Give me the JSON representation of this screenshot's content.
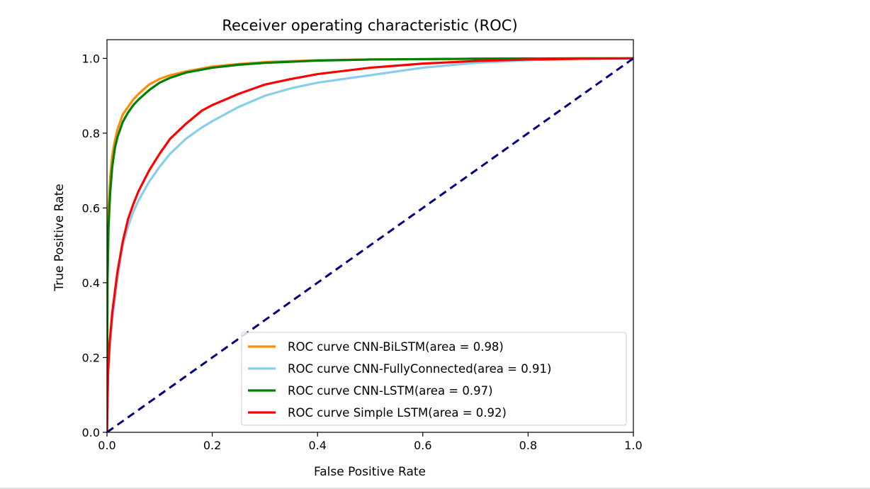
{
  "chart_data": {
    "type": "line",
    "title": "Receiver operating characteristic (ROC)",
    "xlabel": "False Positive Rate",
    "ylabel": "True Positive Rate",
    "xlim": [
      0.0,
      1.0
    ],
    "ylim": [
      0.0,
      1.05
    ],
    "xticks": [
      0.0,
      0.2,
      0.4,
      0.6,
      0.8,
      1.0
    ],
    "xtick_labels": [
      "0.0",
      "0.2",
      "0.4",
      "0.6",
      "0.8",
      "1.0"
    ],
    "yticks": [
      0.0,
      0.2,
      0.4,
      0.6,
      0.8,
      1.0
    ],
    "ytick_labels": [
      "0.0",
      "0.2",
      "0.4",
      "0.6",
      "0.8",
      "1.0"
    ],
    "grid": false,
    "legend_position": "lower-right",
    "series": [
      {
        "name": "ROC curve CNN-BiLSTM(area = 0.98)",
        "color": "#ff8c00",
        "dash": "solid",
        "x": [
          0.0,
          0.001,
          0.003,
          0.006,
          0.01,
          0.015,
          0.02,
          0.03,
          0.04,
          0.05,
          0.06,
          0.08,
          0.1,
          0.12,
          0.15,
          0.2,
          0.25,
          0.3,
          0.4,
          0.5,
          0.6,
          0.7,
          0.8,
          0.9,
          1.0
        ],
        "y": [
          0.0,
          0.45,
          0.6,
          0.68,
          0.74,
          0.78,
          0.81,
          0.85,
          0.87,
          0.89,
          0.905,
          0.93,
          0.945,
          0.955,
          0.965,
          0.978,
          0.985,
          0.99,
          0.995,
          0.997,
          0.998,
          0.999,
          0.9995,
          1.0,
          1.0
        ]
      },
      {
        "name": "ROC curve CNN-FullyConnected(area = 0.91)",
        "color": "#87ceeb",
        "dash": "solid",
        "x": [
          0.0,
          0.002,
          0.005,
          0.01,
          0.02,
          0.03,
          0.04,
          0.05,
          0.06,
          0.08,
          0.1,
          0.12,
          0.15,
          0.18,
          0.2,
          0.25,
          0.3,
          0.35,
          0.4,
          0.5,
          0.6,
          0.7,
          0.8,
          0.9,
          1.0
        ],
        "y": [
          0.0,
          0.15,
          0.22,
          0.3,
          0.41,
          0.5,
          0.55,
          0.59,
          0.62,
          0.67,
          0.71,
          0.745,
          0.785,
          0.815,
          0.832,
          0.87,
          0.9,
          0.92,
          0.935,
          0.955,
          0.975,
          0.988,
          0.995,
          0.999,
          1.0
        ]
      },
      {
        "name": "ROC curve CNN-LSTM(area = 0.97)",
        "color": "#008000",
        "dash": "solid",
        "x": [
          0.0,
          0.001,
          0.003,
          0.006,
          0.01,
          0.015,
          0.02,
          0.03,
          0.04,
          0.05,
          0.06,
          0.08,
          0.1,
          0.12,
          0.15,
          0.2,
          0.25,
          0.3,
          0.4,
          0.5,
          0.6,
          0.7,
          0.8,
          0.9,
          1.0
        ],
        "y": [
          0.0,
          0.4,
          0.55,
          0.64,
          0.71,
          0.76,
          0.79,
          0.83,
          0.855,
          0.875,
          0.89,
          0.915,
          0.935,
          0.948,
          0.962,
          0.975,
          0.983,
          0.988,
          0.994,
          0.997,
          0.998,
          0.999,
          0.9995,
          1.0,
          1.0
        ]
      },
      {
        "name": "ROC curve Simple LSTM(area = 0.92)",
        "color": "#ff0000",
        "dash": "solid",
        "x": [
          0.0,
          0.002,
          0.005,
          0.01,
          0.02,
          0.03,
          0.04,
          0.05,
          0.06,
          0.08,
          0.1,
          0.12,
          0.15,
          0.18,
          0.2,
          0.25,
          0.3,
          0.35,
          0.4,
          0.5,
          0.6,
          0.7,
          0.8,
          0.9,
          1.0
        ],
        "y": [
          0.0,
          0.16,
          0.24,
          0.32,
          0.43,
          0.51,
          0.57,
          0.61,
          0.645,
          0.7,
          0.745,
          0.785,
          0.825,
          0.86,
          0.875,
          0.905,
          0.93,
          0.945,
          0.958,
          0.975,
          0.986,
          0.993,
          0.997,
          0.999,
          1.0
        ]
      },
      {
        "name": "",
        "color": "#000080",
        "dash": "dashed",
        "x": [
          0.0,
          1.0
        ],
        "y": [
          0.0,
          1.0
        ]
      }
    ]
  }
}
